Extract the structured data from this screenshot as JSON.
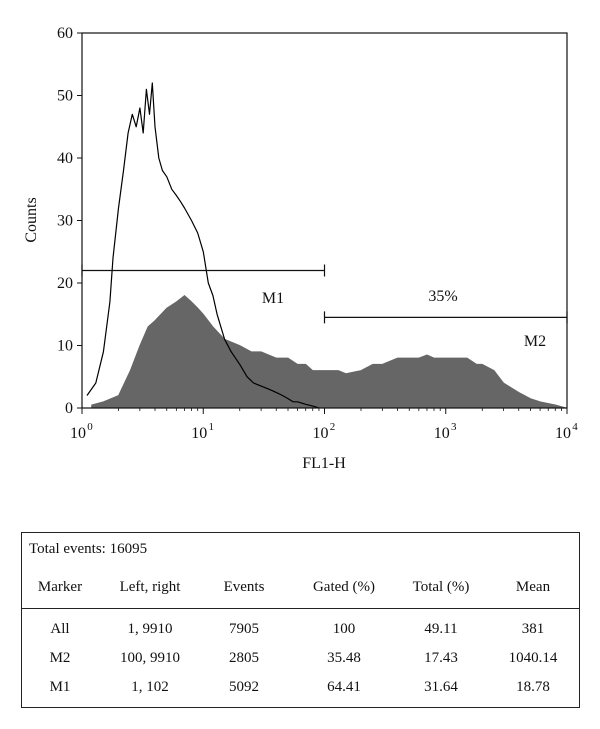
{
  "chart_data": {
    "type": "area",
    "xlabel": "FL1-H",
    "ylabel": "Counts",
    "x_scale": "log",
    "xlim": [
      1,
      10000
    ],
    "ylim": [
      0,
      60
    ],
    "x_ticks": [
      "10",
      "10",
      "10",
      "10",
      "10"
    ],
    "x_tick_exponents": [
      "0",
      "1",
      "2",
      "3",
      "4"
    ],
    "y_ticks": [
      "0",
      "10",
      "20",
      "30",
      "40",
      "50",
      "60"
    ],
    "grid": false,
    "series": [
      {
        "style": "outline",
        "x": [
          1.1,
          1.3,
          1.5,
          1.7,
          1.8,
          2.0,
          2.2,
          2.4,
          2.6,
          2.8,
          3.0,
          3.2,
          3.4,
          3.6,
          3.8,
          4.0,
          4.3,
          4.6,
          5.0,
          5.5,
          6.0,
          6.5,
          7.0,
          8.0,
          9.0,
          10,
          11,
          12,
          13,
          15,
          17,
          20,
          23,
          26,
          30,
          35,
          40,
          45,
          50,
          55,
          60,
          70,
          80,
          90
        ],
        "values": [
          2,
          4,
          9,
          17,
          24,
          32,
          38,
          44,
          47,
          45,
          48,
          44,
          51,
          47,
          52,
          45,
          40,
          38,
          37,
          35,
          34,
          33,
          32,
          30,
          28,
          25,
          20,
          18,
          15,
          11,
          9,
          7,
          5,
          4,
          3.5,
          3,
          2.5,
          2,
          1.5,
          1,
          1,
          0.6,
          0.3,
          0
        ]
      },
      {
        "style": "filled",
        "color": "#666666",
        "x": [
          1.2,
          1.5,
          2.0,
          2.5,
          3.0,
          3.5,
          4.0,
          5.0,
          6.0,
          7.0,
          8.0,
          9.0,
          10,
          12,
          15,
          20,
          25,
          30,
          40,
          50,
          60,
          70,
          80,
          100,
          130,
          150,
          200,
          250,
          300,
          400,
          500,
          600,
          700,
          800,
          1000,
          1200,
          1500,
          1800,
          2000,
          2500,
          3000,
          4000,
          5000,
          6000,
          8000,
          9910
        ],
        "values": [
          0.5,
          1,
          2,
          6,
          10,
          13,
          14,
          16,
          17,
          18,
          17,
          16,
          15,
          13,
          11,
          10,
          9,
          9,
          8,
          8,
          7,
          7,
          6,
          6,
          6,
          5.5,
          6,
          7,
          7,
          8,
          8,
          8,
          8.5,
          8,
          8,
          8,
          8,
          7,
          7,
          6,
          4,
          2.5,
          1.5,
          1,
          0.5,
          0
        ]
      }
    ],
    "annotations": {
      "m1_label": "M1",
      "m1_range": [
        1,
        100
      ],
      "m1_level": 22,
      "m2_label": "M2",
      "m2_range": [
        100,
        10000
      ],
      "m2_level": 14.5,
      "m2_percent": "35%"
    }
  },
  "stats": {
    "total_events": "Total events: 16095",
    "headers": [
      "Marker",
      "Left, right",
      "Events",
      "Gated (%)",
      "Total (%)",
      "Mean"
    ],
    "rows": [
      [
        "All",
        "1, 9910",
        "7905",
        "100",
        "49.11",
        "381"
      ],
      [
        "M2",
        "100, 9910",
        "2805",
        "35.48",
        "17.43",
        "1040.14"
      ],
      [
        "M1",
        "1, 102",
        "5092",
        "64.41",
        "31.64",
        "18.78"
      ]
    ]
  }
}
